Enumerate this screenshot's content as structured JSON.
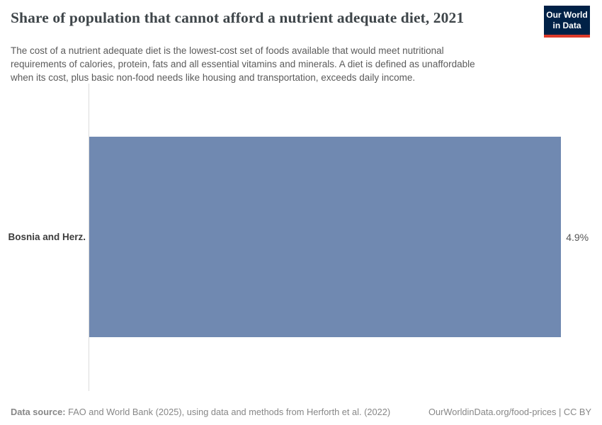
{
  "header": {
    "title": "Share of population that cannot afford a nutrient adequate diet, 2021",
    "subtitle_lines": [
      "The cost of a nutrient adequate diet is the lowest-cost set of foods available that would meet nutritional",
      "requirements of calories, protein, fats and all essential vitamins and minerals. A diet is defined as unaffordable",
      "when its cost, plus basic non-food needs like housing and transportation, exceeds daily income."
    ],
    "logo": {
      "line1": "Our World",
      "line2": "in Data",
      "bg_color": "#002147",
      "accent_color": "#dc3a2a"
    }
  },
  "chart_data": {
    "type": "bar",
    "orientation": "horizontal",
    "title": "Share of population that cannot afford a nutrient adequate diet, 2021",
    "categories": [
      "Bosnia and Herz."
    ],
    "values": [
      4.9
    ],
    "value_labels": [
      "4.9%"
    ],
    "unit": "%",
    "xlim": [
      0,
      5.2
    ],
    "grid": false,
    "legend": false,
    "bar_color": "#7089b1"
  },
  "footer": {
    "source_label": "Data source:",
    "source_text": " FAO and World Bank (2025), using data and methods from Herforth et al. (2022)",
    "right_text": "OurWorldinData.org/food-prices | CC BY"
  }
}
